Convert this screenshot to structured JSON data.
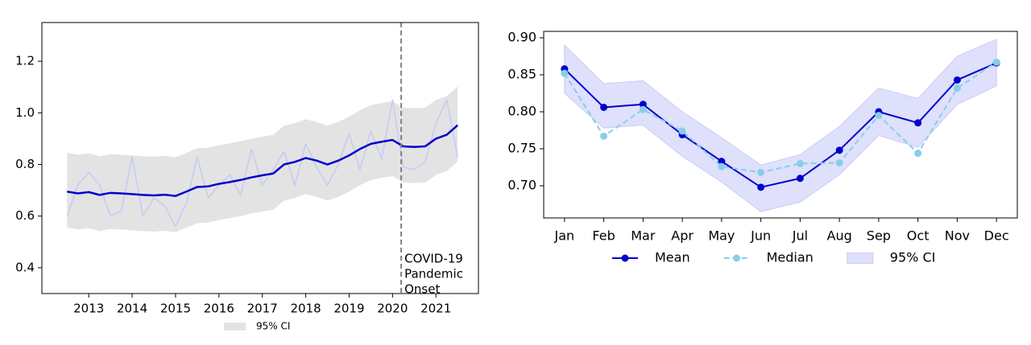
{
  "chart_data": [
    {
      "type": "line",
      "x": [
        2012.5,
        2012.75,
        2013,
        2013.25,
        2013.5,
        2013.75,
        2014,
        2014.25,
        2014.5,
        2014.75,
        2015,
        2015.25,
        2015.5,
        2015.75,
        2016,
        2016.25,
        2016.5,
        2016.75,
        2017,
        2017.25,
        2017.5,
        2017.75,
        2018,
        2018.25,
        2018.5,
        2018.75,
        2019,
        2019.25,
        2019.5,
        2019.75,
        2020,
        2020.25,
        2020.5,
        2020.75,
        2021,
        2021.25,
        2021.5
      ],
      "series": [
        {
          "color": "#c5cbf3",
          "width": 1.5,
          "values": [
            0.6,
            0.72,
            0.77,
            0.72,
            0.6,
            0.62,
            0.83,
            0.6,
            0.67,
            0.64,
            0.56,
            0.65,
            0.83,
            0.67,
            0.72,
            0.76,
            0.68,
            0.86,
            0.72,
            0.78,
            0.85,
            0.72,
            0.88,
            0.79,
            0.72,
            0.8,
            0.92,
            0.78,
            0.93,
            0.82,
            1.05,
            0.79,
            0.78,
            0.81,
            0.96,
            1.05,
            0.83
          ]
        },
        {
          "color": "#0000cd",
          "width": 2.5,
          "values": [
            0.695,
            0.688,
            0.693,
            0.682,
            0.69,
            0.688,
            0.685,
            0.682,
            0.68,
            0.683,
            0.678,
            0.695,
            0.713,
            0.715,
            0.725,
            0.732,
            0.74,
            0.75,
            0.758,
            0.765,
            0.8,
            0.81,
            0.825,
            0.815,
            0.8,
            0.815,
            0.835,
            0.86,
            0.88,
            0.888,
            0.895,
            0.87,
            0.868,
            0.87,
            0.9,
            0.915,
            0.952
          ]
        }
      ],
      "band": {
        "name": "95% CI",
        "color": "#e3e3e3",
        "lower": [
          0.555,
          0.548,
          0.553,
          0.542,
          0.55,
          0.548,
          0.545,
          0.542,
          0.54,
          0.543,
          0.538,
          0.555,
          0.573,
          0.575,
          0.585,
          0.592,
          0.6,
          0.61,
          0.618,
          0.625,
          0.66,
          0.67,
          0.685,
          0.675,
          0.66,
          0.675,
          0.695,
          0.72,
          0.74,
          0.748,
          0.755,
          0.73,
          0.728,
          0.73,
          0.76,
          0.775,
          0.812
        ],
        "upper": [
          0.845,
          0.838,
          0.843,
          0.832,
          0.84,
          0.838,
          0.835,
          0.832,
          0.83,
          0.833,
          0.828,
          0.845,
          0.863,
          0.865,
          0.875,
          0.882,
          0.89,
          0.9,
          0.908,
          0.915,
          0.95,
          0.96,
          0.975,
          0.965,
          0.95,
          0.965,
          0.985,
          1.01,
          1.03,
          1.038,
          1.045,
          1.02,
          1.018,
          1.02,
          1.05,
          1.065,
          1.102
        ]
      },
      "vline": {
        "x": 2020.2,
        "color": "#808080",
        "lines": [
          "COVID-19",
          "Pandemic",
          "Onset"
        ]
      },
      "xlim": [
        2011.92,
        2021.98
      ],
      "xticks": [
        2013,
        2014,
        2015,
        2016,
        2017,
        2018,
        2019,
        2020,
        2021
      ],
      "ylim": [
        0.3,
        1.35
      ],
      "yticks": [
        0.4,
        0.6,
        0.8,
        {
          "value": 1,
          "label": "1.0"
        },
        1.2
      ]
    },
    {
      "type": "line",
      "categories": [
        "Jan",
        "Feb",
        "Mar",
        "Apr",
        "May",
        "Jun",
        "Jul",
        "Aug",
        "Sep",
        "Oct",
        "Nov",
        "Dec"
      ],
      "series": [
        {
          "name": "Mean",
          "color": "#0000cd",
          "width": 2,
          "marker": true,
          "values": [
            0.858,
            0.806,
            0.81,
            0.769,
            0.733,
            0.698,
            0.71,
            0.748,
            0.8,
            0.785,
            0.843,
            0.866
          ]
        },
        {
          "name": "Median",
          "color": "#87ceeb",
          "width": 2,
          "marker": true,
          "dash": true,
          "values": [
            0.852,
            0.767,
            0.803,
            0.774,
            0.726,
            0.718,
            0.73,
            0.731,
            0.795,
            0.744,
            0.832,
            0.867
          ]
        }
      ],
      "band": {
        "name": "95% CI",
        "color": "#dfe0fb",
        "lower": [
          0.825,
          0.778,
          0.782,
          0.74,
          0.705,
          0.665,
          0.678,
          0.715,
          0.768,
          0.752,
          0.81,
          0.835
        ],
        "upper": [
          0.89,
          0.838,
          0.842,
          0.8,
          0.765,
          0.728,
          0.742,
          0.78,
          0.832,
          0.818,
          0.875,
          0.898
        ]
      },
      "ylim": [
        0.6565,
        0.9087
      ],
      "yticks": [
        {
          "value": 0.7,
          "label": "0.70"
        },
        0.75,
        {
          "value": 0.8,
          "label": "0.80"
        },
        0.85,
        {
          "value": 0.9,
          "label": "0.90"
        }
      ]
    }
  ]
}
